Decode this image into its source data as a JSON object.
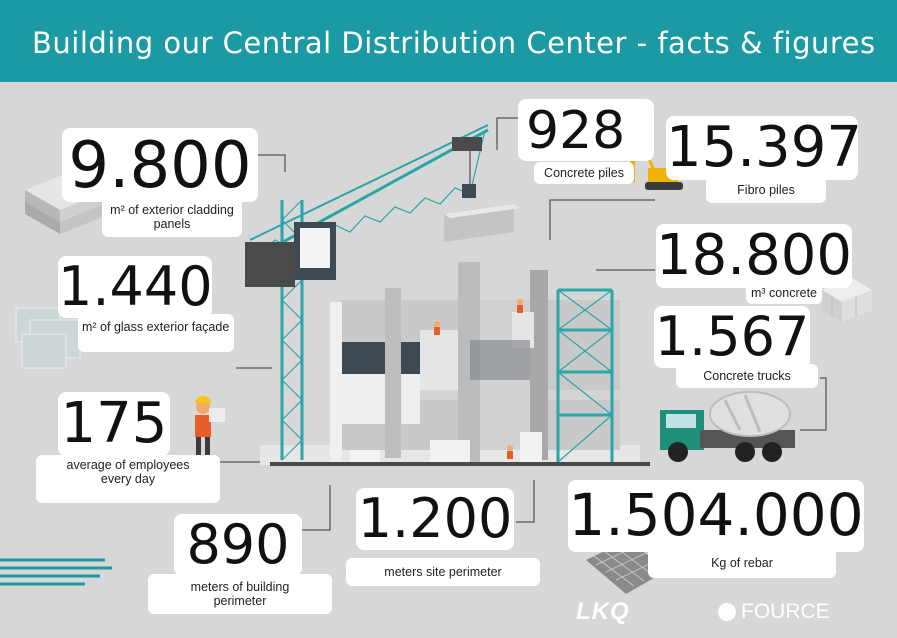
{
  "header": {
    "title": "Building our Central Distribution Center - facts & figures"
  },
  "facts": [
    {
      "id": "cladding",
      "value": "9.800",
      "label": "m²   of exterior cladding panels"
    },
    {
      "id": "glass",
      "value": "1.440",
      "label": "m²   of glass exterior façade"
    },
    {
      "id": "employees",
      "value": "175",
      "label": "average of employees every day"
    },
    {
      "id": "perimeter",
      "value": "890",
      "label": "meters of building perimeter"
    },
    {
      "id": "site",
      "value": "1.200",
      "label": "meters site perimeter"
    },
    {
      "id": "piles",
      "value": "928",
      "label": "Concrete piles"
    },
    {
      "id": "fibro",
      "value": "15.397",
      "label": "Fibro piles"
    },
    {
      "id": "concrete",
      "value": "18.800",
      "label": "m³ concrete"
    },
    {
      "id": "trucks",
      "value": "1.567",
      "label": "Concrete trucks"
    },
    {
      "id": "rebar",
      "value": "1.504.000",
      "label": "Kg of rebar"
    }
  ],
  "logos": {
    "lkq": "LKQ",
    "fource": "FOURCE"
  },
  "colors": {
    "header": "#1b9aa3",
    "crane": "#2aa5a8",
    "background": "#d7d7d7",
    "truck_cab": "#1f8f79"
  }
}
